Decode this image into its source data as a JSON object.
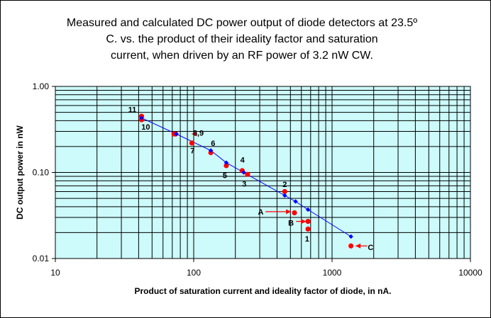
{
  "chart_data": {
    "type": "scatter",
    "title": "Measured and calculated DC power output of diode detectors at 23.5º C. vs. the product of their ideality factor and saturation current, when driven by an RF power of 3.2 nW CW.",
    "title_lines": [
      "Measured and calculated DC power output of diode detectors at 23.5º",
      "C. vs. the product of their ideality factor and saturation",
      "current, when driven by an RF power of 3.2 nW CW."
    ],
    "xlabel": "Product of saturation current and ideality factor of diode, in nA.",
    "ylabel": "DC output power in nW",
    "x_scale": "log",
    "y_scale": "log",
    "xlim": [
      10,
      10000
    ],
    "ylim": [
      0.01,
      1.0
    ],
    "x_ticks": [
      "10",
      "100",
      "1000",
      "10000"
    ],
    "y_ticks": [
      "1.00",
      "0.10",
      "0.01"
    ],
    "grid": true,
    "plot_background": "#cdfafa",
    "series": [
      {
        "color": "#ff0000",
        "marker": "circle",
        "points": [
          {
            "x": 42,
            "y": 0.45
          },
          {
            "x": 42,
            "y": 0.41
          },
          {
            "x": 72,
            "y": 0.28
          },
          {
            "x": 74,
            "y": 0.28
          },
          {
            "x": 97,
            "y": 0.22
          },
          {
            "x": 133,
            "y": 0.17
          },
          {
            "x": 172,
            "y": 0.12
          },
          {
            "x": 224,
            "y": 0.105
          },
          {
            "x": 245,
            "y": 0.095
          },
          {
            "x": 455,
            "y": 0.06
          },
          {
            "x": 535,
            "y": 0.034
          },
          {
            "x": 670,
            "y": 0.027
          },
          {
            "x": 670,
            "y": 0.022
          },
          {
            "x": 1370,
            "y": 0.014
          }
        ]
      },
      {
        "color": "#0000ff",
        "marker": "diamond",
        "line": true,
        "points": [
          {
            "x": 42,
            "y": 0.43
          },
          {
            "x": 75,
            "y": 0.28
          },
          {
            "x": 133,
            "y": 0.18
          },
          {
            "x": 172,
            "y": 0.13
          },
          {
            "x": 230,
            "y": 0.1
          },
          {
            "x": 455,
            "y": 0.054
          },
          {
            "x": 545,
            "y": 0.046
          },
          {
            "x": 670,
            "y": 0.037
          },
          {
            "x": 1370,
            "y": 0.018
          }
        ]
      }
    ],
    "annotations": [
      {
        "text": "11",
        "x": 36,
        "y": 0.54
      },
      {
        "text": "10",
        "x": 45,
        "y": 0.34
      },
      {
        "text": "8,9",
        "x": 108,
        "y": 0.29
      },
      {
        "text": "7",
        "x": 98,
        "y": 0.18
      },
      {
        "text": "6",
        "x": 138,
        "y": 0.22
      },
      {
        "text": "5",
        "x": 168,
        "y": 0.093
      },
      {
        "text": "4",
        "x": 225,
        "y": 0.14
      },
      {
        "text": "3",
        "x": 232,
        "y": 0.074
      },
      {
        "text": "2",
        "x": 455,
        "y": 0.073
      },
      {
        "text": "A",
        "x": 305,
        "y": 0.035
      },
      {
        "text": "B",
        "x": 505,
        "y": 0.026
      },
      {
        "text": "1",
        "x": 660,
        "y": 0.017
      },
      {
        "text": "C",
        "x": 1900,
        "y": 0.0135
      }
    ],
    "arrows": [
      {
        "target": "8,9",
        "direction": "left",
        "x_from": 105,
        "x_to": 97,
        "y": 0.28
      },
      {
        "target": "A",
        "direction": "right",
        "x_from": 330,
        "x_to": 505,
        "y": 0.035
      },
      {
        "target": "B",
        "direction": "right",
        "x_from": 550,
        "x_to": 650,
        "y": 0.027
      },
      {
        "target": "C",
        "direction": "left",
        "x_from": 1800,
        "x_to": 1480,
        "y": 0.014
      }
    ]
  }
}
